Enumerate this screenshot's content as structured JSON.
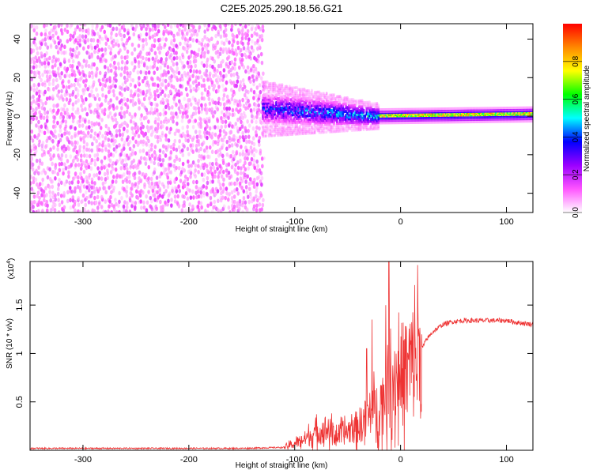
{
  "title": "C2E5.2025.290.18.56.G21",
  "chart_data": [
    {
      "type": "heatmap",
      "xlabel": "Height of straight line (km)",
      "ylabel": "Frequency (Hz)",
      "xlim": [
        -350,
        125
      ],
      "ylim": [
        -50,
        48
      ],
      "x_ticks": [
        -300,
        -200,
        -100,
        0,
        100
      ],
      "y_ticks": [
        -40,
        -20,
        0,
        20,
        40
      ],
      "colorbar": {
        "label": "Normalized spectral amplitude",
        "range": [
          0,
          1
        ],
        "ticks": [
          "0.0",
          "0.2",
          "0.4",
          "0.6",
          "0.8"
        ],
        "colors": [
          "#ffffff",
          "#ff55ff",
          "#9a00ff",
          "#0000ff",
          "#00ffff",
          "#00ff00",
          "#ffff00",
          "#ff8800",
          "#ff0000"
        ]
      },
      "regions": [
        {
          "x_range": [
            -350,
            -130
          ],
          "description_value": "broadband noise across all frequencies",
          "mean_amplitude": 0.1
        },
        {
          "x_range": [
            -130,
            -20
          ],
          "center_freq_hz": [
            4,
            0
          ],
          "band_halfwidth_hz": [
            9,
            4
          ],
          "mean_amplitude": 0.25
        },
        {
          "x_range": [
            -20,
            125
          ],
          "center_freq_hz": [
            0,
            1
          ],
          "band_halfwidth_hz": [
            3,
            3
          ],
          "mean_amplitude": 0.7
        }
      ]
    },
    {
      "type": "line",
      "xlabel": "Height of straight line (km)",
      "ylabel": "SNR (10 * v/v)",
      "y_scale_label": "(x10",
      "y_scale_exp": "4",
      "xlim": [
        -350,
        125
      ],
      "ylim": [
        0,
        1.95
      ],
      "x_ticks": [
        -300,
        -200,
        -100,
        0,
        100
      ],
      "y_ticks": [
        "0.5",
        "1",
        "1.5"
      ],
      "color": "#ee3333",
      "series": [
        {
          "x": [
            -350,
            -300,
            -250,
            -200,
            -150,
            -110,
            -100,
            -90,
            -80,
            -70,
            -60,
            -50,
            -40,
            -30,
            -25,
            -20,
            -15,
            -12,
            -10,
            -8,
            -5,
            0,
            5,
            10,
            15,
            20,
            25,
            30,
            40,
            50,
            60,
            80,
            100,
            110,
            125
          ],
          "y": [
            0.02,
            0.02,
            0.02,
            0.02,
            0.02,
            0.03,
            0.07,
            0.12,
            0.18,
            0.22,
            0.15,
            0.2,
            0.25,
            0.35,
            0.4,
            0.45,
            0.55,
            0.65,
            0.6,
            0.7,
            0.75,
            0.78,
            0.82,
            0.88,
            0.95,
            1.05,
            1.15,
            1.22,
            1.3,
            1.33,
            1.34,
            1.34,
            1.34,
            1.32,
            1.3
          ]
        }
      ],
      "spikes": [
        {
          "x": -11,
          "y": 1.98
        },
        {
          "x": -14,
          "y": 1.5
        },
        {
          "x": -27,
          "y": 1.35
        },
        {
          "x": -32,
          "y": 1.05
        }
      ]
    }
  ]
}
